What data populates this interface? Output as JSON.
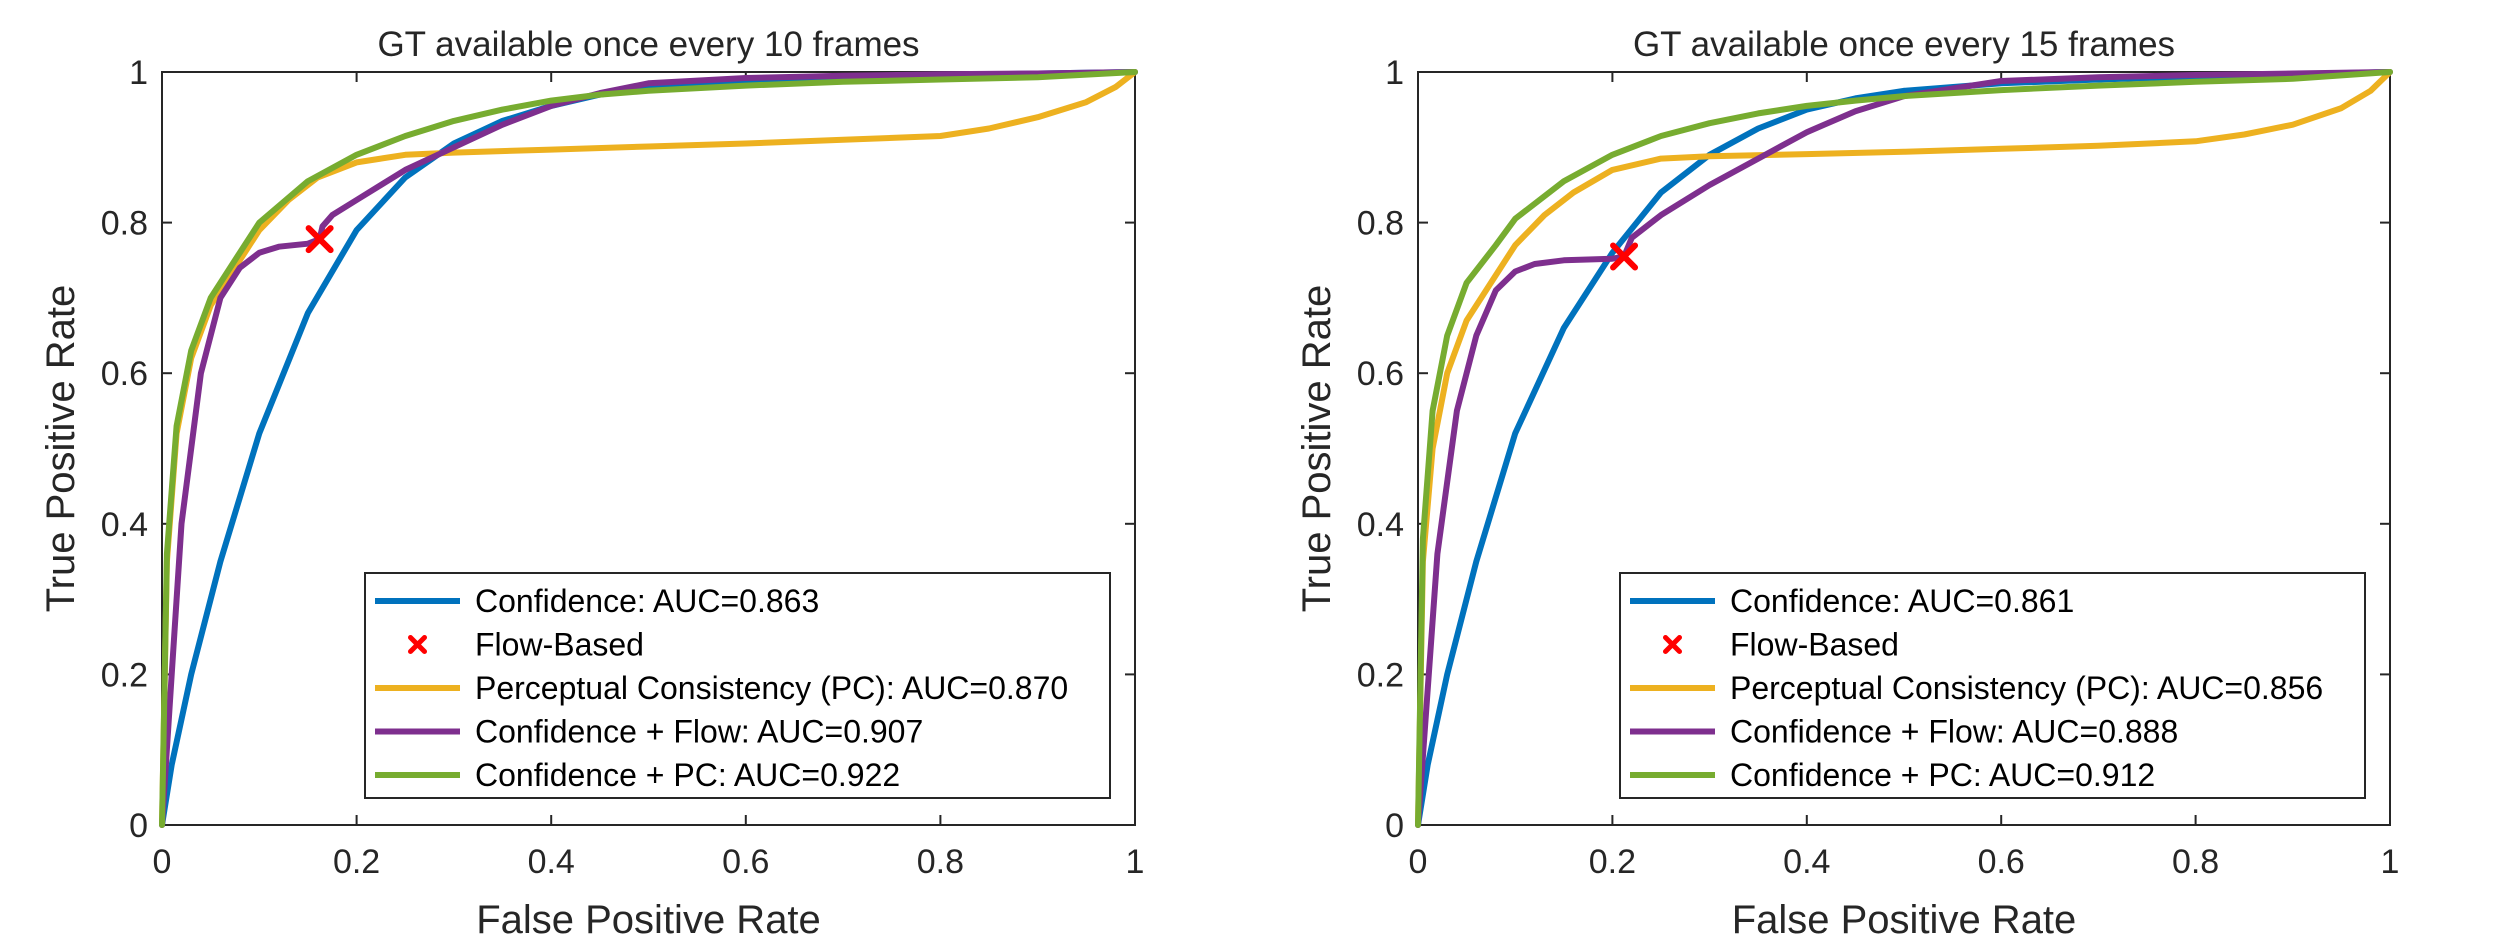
{
  "chart_data": [
    {
      "type": "line",
      "title": "GT available once every 10 frames",
      "xlabel": "False Positive Rate",
      "ylabel": "True Positive Rate",
      "xlim": [
        0,
        1
      ],
      "ylim": [
        0,
        1
      ],
      "xticks": [
        "0",
        "0.2",
        "0.4",
        "0.6",
        "0.8",
        "1"
      ],
      "yticks": [
        "0",
        "0.2",
        "0.4",
        "0.6",
        "0.8",
        "1"
      ],
      "legend_position": "bottom-right",
      "series": [
        {
          "name": "Confidence: AUC=0.863",
          "color": "#0072BD",
          "x": [
            0,
            0.01,
            0.03,
            0.06,
            0.1,
            0.15,
            0.2,
            0.25,
            0.3,
            0.35,
            0.4,
            0.45,
            0.5,
            0.6,
            0.7,
            0.8,
            0.9,
            1
          ],
          "y": [
            0,
            0.08,
            0.2,
            0.35,
            0.52,
            0.68,
            0.79,
            0.86,
            0.905,
            0.935,
            0.955,
            0.97,
            0.98,
            0.988,
            0.993,
            0.996,
            0.998,
            1
          ]
        },
        {
          "name": "Flow-Based",
          "color": "#FF0000",
          "marker": "x",
          "x": [
            0.162
          ],
          "y": [
            0.778
          ]
        },
        {
          "name": "Perceptual Consistency (PC): AUC=0.870",
          "color": "#EDB120",
          "x": [
            0,
            0.005,
            0.015,
            0.03,
            0.05,
            0.08,
            0.1,
            0.13,
            0.16,
            0.2,
            0.25,
            0.3,
            0.4,
            0.5,
            0.6,
            0.7,
            0.8,
            0.85,
            0.9,
            0.95,
            0.98,
            1
          ],
          "y": [
            0,
            0.35,
            0.52,
            0.62,
            0.69,
            0.75,
            0.79,
            0.83,
            0.86,
            0.88,
            0.89,
            0.893,
            0.897,
            0.901,
            0.905,
            0.91,
            0.915,
            0.925,
            0.94,
            0.96,
            0.98,
            1
          ]
        },
        {
          "name": "Confidence + Flow: AUC=0.907",
          "color": "#7E2F8E",
          "x": [
            0,
            0.01,
            0.02,
            0.04,
            0.06,
            0.08,
            0.1,
            0.12,
            0.15,
            0.162,
            0.165,
            0.175,
            0.2,
            0.25,
            0.3,
            0.35,
            0.4,
            0.45,
            0.5,
            0.6,
            0.7,
            0.8,
            0.9,
            1
          ],
          "y": [
            0,
            0.2,
            0.4,
            0.6,
            0.7,
            0.74,
            0.76,
            0.768,
            0.772,
            0.778,
            0.795,
            0.81,
            0.83,
            0.87,
            0.9,
            0.93,
            0.955,
            0.972,
            0.985,
            0.992,
            0.995,
            0.997,
            0.998,
            1
          ]
        },
        {
          "name": "Confidence + PC: AUC=0.922",
          "color": "#77AC30",
          "x": [
            0,
            0.005,
            0.015,
            0.03,
            0.05,
            0.08,
            0.1,
            0.15,
            0.2,
            0.25,
            0.3,
            0.35,
            0.4,
            0.45,
            0.5,
            0.6,
            0.7,
            0.8,
            0.9,
            1
          ],
          "y": [
            0,
            0.36,
            0.53,
            0.63,
            0.7,
            0.76,
            0.8,
            0.855,
            0.89,
            0.915,
            0.935,
            0.95,
            0.962,
            0.97,
            0.975,
            0.982,
            0.987,
            0.99,
            0.993,
            1
          ]
        }
      ]
    },
    {
      "type": "line",
      "title": "GT available once every 15 frames",
      "xlabel": "False Positive Rate",
      "ylabel": "True Positive Rate",
      "xlim": [
        0,
        1
      ],
      "ylim": [
        0,
        1
      ],
      "xticks": [
        "0",
        "0.2",
        "0.4",
        "0.6",
        "0.8",
        "1"
      ],
      "yticks": [
        "0",
        "0.2",
        "0.4",
        "0.6",
        "0.8",
        "1"
      ],
      "legend_position": "bottom-right",
      "series": [
        {
          "name": "Confidence: AUC=0.861",
          "color": "#0072BD",
          "x": [
            0,
            0.01,
            0.03,
            0.06,
            0.1,
            0.15,
            0.2,
            0.25,
            0.3,
            0.35,
            0.4,
            0.45,
            0.5,
            0.6,
            0.7,
            0.8,
            0.9,
            1
          ],
          "y": [
            0,
            0.08,
            0.2,
            0.35,
            0.52,
            0.66,
            0.76,
            0.84,
            0.89,
            0.925,
            0.95,
            0.965,
            0.975,
            0.985,
            0.99,
            0.994,
            0.997,
            1
          ]
        },
        {
          "name": "Flow-Based",
          "color": "#FF0000",
          "marker": "x",
          "x": [
            0.212
          ],
          "y": [
            0.755
          ]
        },
        {
          "name": "Perceptual Consistency (PC): AUC=0.856",
          "color": "#EDB120",
          "x": [
            0,
            0.005,
            0.015,
            0.03,
            0.05,
            0.08,
            0.1,
            0.13,
            0.16,
            0.2,
            0.25,
            0.3,
            0.4,
            0.5,
            0.6,
            0.7,
            0.8,
            0.85,
            0.9,
            0.95,
            0.98,
            1
          ],
          "y": [
            0,
            0.35,
            0.5,
            0.6,
            0.67,
            0.73,
            0.77,
            0.81,
            0.84,
            0.87,
            0.885,
            0.888,
            0.891,
            0.894,
            0.898,
            0.902,
            0.908,
            0.917,
            0.93,
            0.952,
            0.975,
            1
          ]
        },
        {
          "name": "Confidence + Flow: AUC=0.888",
          "color": "#7E2F8E",
          "x": [
            0,
            0.01,
            0.02,
            0.04,
            0.06,
            0.08,
            0.1,
            0.12,
            0.15,
            0.2,
            0.212,
            0.22,
            0.25,
            0.3,
            0.35,
            0.4,
            0.45,
            0.5,
            0.6,
            0.7,
            0.8,
            0.9,
            1
          ],
          "y": [
            0,
            0.18,
            0.36,
            0.55,
            0.65,
            0.71,
            0.735,
            0.745,
            0.75,
            0.752,
            0.755,
            0.78,
            0.81,
            0.85,
            0.885,
            0.92,
            0.948,
            0.968,
            0.988,
            0.993,
            0.996,
            0.998,
            1
          ]
        },
        {
          "name": "Confidence + PC: AUC=0.912",
          "color": "#77AC30",
          "x": [
            0,
            0.005,
            0.015,
            0.03,
            0.05,
            0.08,
            0.1,
            0.15,
            0.2,
            0.25,
            0.3,
            0.35,
            0.4,
            0.45,
            0.5,
            0.6,
            0.7,
            0.8,
            0.9,
            1
          ],
          "y": [
            0,
            0.38,
            0.55,
            0.65,
            0.72,
            0.77,
            0.805,
            0.855,
            0.89,
            0.915,
            0.932,
            0.945,
            0.955,
            0.962,
            0.968,
            0.976,
            0.982,
            0.987,
            0.991,
            1
          ]
        }
      ]
    }
  ]
}
